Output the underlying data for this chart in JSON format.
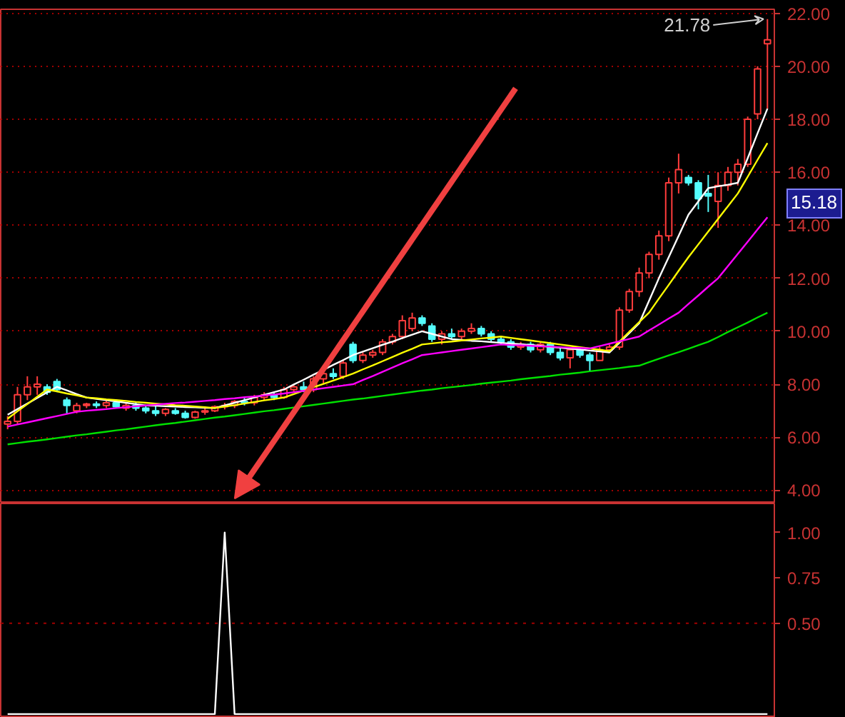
{
  "chart_data": [
    {
      "type": "candlestick",
      "categories": [
        null,
        null,
        null,
        null,
        null,
        null,
        null,
        null,
        null,
        null,
        null,
        null,
        null,
        null,
        null,
        null,
        null,
        null,
        null,
        null,
        null,
        null,
        null,
        null,
        null,
        null,
        null,
        null,
        null,
        null,
        null,
        null,
        null,
        null,
        null,
        null,
        null,
        null,
        null,
        null,
        null,
        null,
        null,
        null,
        null,
        null,
        null,
        null,
        null,
        null,
        null,
        null,
        null,
        null,
        null,
        null,
        null,
        null,
        null,
        null,
        null,
        null,
        null,
        null,
        null,
        null,
        null,
        null,
        null,
        null,
        null,
        null,
        null,
        null,
        null,
        null,
        null,
        null
      ],
      "ohlc": [
        [
          6.5,
          6.8,
          6.3,
          6.6
        ],
        [
          6.6,
          7.9,
          6.5,
          7.6
        ],
        [
          7.6,
          8.3,
          7.4,
          7.9
        ],
        [
          7.9,
          8.3,
          7.6,
          8.0
        ],
        [
          7.9,
          8.0,
          7.6,
          7.7
        ],
        [
          8.1,
          8.2,
          7.7,
          7.8
        ],
        [
          7.4,
          7.5,
          6.9,
          7.2
        ],
        [
          7.0,
          7.3,
          6.9,
          7.2
        ],
        [
          7.2,
          7.3,
          7.1,
          7.25
        ],
        [
          7.25,
          7.35,
          7.1,
          7.2
        ],
        [
          7.2,
          7.4,
          7.1,
          7.3
        ],
        [
          7.3,
          7.4,
          7.1,
          7.15
        ],
        [
          7.1,
          7.3,
          7.0,
          7.2
        ],
        [
          7.2,
          7.3,
          7.0,
          7.1
        ],
        [
          7.1,
          7.2,
          6.9,
          7.0
        ],
        [
          7.0,
          7.2,
          6.8,
          6.9
        ],
        [
          6.9,
          7.1,
          6.8,
          7.05
        ],
        [
          7.0,
          7.1,
          6.85,
          6.9
        ],
        [
          6.9,
          7.0,
          6.7,
          6.75
        ],
        [
          6.75,
          7.0,
          6.7,
          6.95
        ],
        [
          6.95,
          7.1,
          6.85,
          7.0
        ],
        [
          7.0,
          7.2,
          6.95,
          7.15
        ],
        [
          7.15,
          7.3,
          7.05,
          7.2
        ],
        [
          7.2,
          7.4,
          7.1,
          7.35
        ],
        [
          7.35,
          7.5,
          7.2,
          7.3
        ],
        [
          7.3,
          7.6,
          7.2,
          7.5
        ],
        [
          7.5,
          7.7,
          7.4,
          7.6
        ],
        [
          7.6,
          7.7,
          7.4,
          7.5
        ],
        [
          7.5,
          7.9,
          7.45,
          7.8
        ],
        [
          7.8,
          8.0,
          7.7,
          7.9
        ],
        [
          7.9,
          8.1,
          7.7,
          7.8
        ],
        [
          7.8,
          8.3,
          7.7,
          8.2
        ],
        [
          8.2,
          8.5,
          8.0,
          8.4
        ],
        [
          8.4,
          8.6,
          8.2,
          8.3
        ],
        [
          8.3,
          8.9,
          8.2,
          8.8
        ],
        [
          9.5,
          9.6,
          8.8,
          8.9
        ],
        [
          8.9,
          9.2,
          8.8,
          9.1
        ],
        [
          9.1,
          9.3,
          9.0,
          9.2
        ],
        [
          9.2,
          9.7,
          9.1,
          9.6
        ],
        [
          9.6,
          9.9,
          9.5,
          9.8
        ],
        [
          9.8,
          10.6,
          9.7,
          10.4
        ],
        [
          10.1,
          10.7,
          10.0,
          10.5
        ],
        [
          10.5,
          10.6,
          10.2,
          10.3
        ],
        [
          10.2,
          10.3,
          9.6,
          9.7
        ],
        [
          9.7,
          10.0,
          9.5,
          9.9
        ],
        [
          9.9,
          10.1,
          9.7,
          9.8
        ],
        [
          9.8,
          10.1,
          9.7,
          10.0
        ],
        [
          10.0,
          10.3,
          9.9,
          10.1
        ],
        [
          10.1,
          10.2,
          9.8,
          9.9
        ],
        [
          9.9,
          10.0,
          9.6,
          9.7
        ],
        [
          9.7,
          9.8,
          9.5,
          9.6
        ],
        [
          9.6,
          9.7,
          9.3,
          9.4
        ],
        [
          9.4,
          9.6,
          9.3,
          9.5
        ],
        [
          9.5,
          9.6,
          9.2,
          9.3
        ],
        [
          9.3,
          9.6,
          9.2,
          9.5
        ],
        [
          9.5,
          9.6,
          9.1,
          9.2
        ],
        [
          9.2,
          9.4,
          8.9,
          9.0
        ],
        [
          9.0,
          9.4,
          8.6,
          9.3
        ],
        [
          9.3,
          9.4,
          9.0,
          9.1
        ],
        [
          9.1,
          9.2,
          8.5,
          8.9
        ],
        [
          8.9,
          9.4,
          8.9,
          9.3
        ],
        [
          9.3,
          9.5,
          9.2,
          9.4
        ],
        [
          9.4,
          10.9,
          9.3,
          10.8
        ],
        [
          10.8,
          11.6,
          10.7,
          11.5
        ],
        [
          11.5,
          12.4,
          11.3,
          12.2
        ],
        [
          12.2,
          13.0,
          12.0,
          12.9
        ],
        [
          12.9,
          13.8,
          12.7,
          13.6
        ],
        [
          13.6,
          15.8,
          13.4,
          15.6
        ],
        [
          15.6,
          16.7,
          15.2,
          16.1
        ],
        [
          15.8,
          15.9,
          15.5,
          15.6
        ],
        [
          15.6,
          15.7,
          14.6,
          15.0
        ],
        [
          15.2,
          15.9,
          14.5,
          15.1
        ],
        [
          14.9,
          16.0,
          13.9,
          15.5
        ],
        [
          15.5,
          16.2,
          15.3,
          16.0
        ],
        [
          16.0,
          16.5,
          15.5,
          16.3
        ],
        [
          16.3,
          18.1,
          16.2,
          18.0
        ],
        [
          18.2,
          20.0,
          18.0,
          19.9
        ],
        [
          20.85,
          21.78,
          18.4,
          21.0
        ]
      ],
      "series": [
        {
          "type": "line",
          "color": "#ffffff",
          "values": [
            6.85,
            7.06,
            7.27,
            7.48,
            7.69,
            7.9,
            7.77,
            7.63,
            7.5,
            7.45,
            7.4,
            7.35,
            7.3,
            7.25,
            7.2,
            7.19,
            7.17,
            7.16,
            7.14,
            7.13,
            7.11,
            7.1,
            7.2,
            7.3,
            7.4,
            7.5,
            7.6,
            7.7,
            7.8,
            7.99,
            8.17,
            8.36,
            8.54,
            8.73,
            8.91,
            9.1,
            9.23,
            9.36,
            9.49,
            9.61,
            9.74,
            9.87,
            10.0,
            9.9,
            9.8,
            9.7,
            9.67,
            9.64,
            9.62,
            9.59,
            9.56,
            9.53,
            9.51,
            9.48,
            9.45,
            9.41,
            9.38,
            9.34,
            9.31,
            9.27,
            9.24,
            9.2,
            9.57,
            9.93,
            10.3,
            11.15,
            12.0,
            12.8,
            13.6,
            14.4,
            14.9,
            15.4,
            15.47,
            15.53,
            15.6,
            16.53,
            17.47,
            18.4
          ]
        },
        {
          "type": "line",
          "color": "#ffff00",
          "values": [
            6.7,
            6.98,
            7.25,
            7.53,
            7.8,
            7.73,
            7.65,
            7.58,
            7.5,
            7.47,
            7.43,
            7.4,
            7.37,
            7.33,
            7.3,
            7.27,
            7.24,
            7.21,
            7.19,
            7.16,
            7.13,
            7.1,
            7.16,
            7.21,
            7.27,
            7.33,
            7.39,
            7.44,
            7.5,
            7.63,
            7.76,
            7.89,
            8.01,
            8.14,
            8.27,
            8.4,
            8.56,
            8.71,
            8.87,
            9.03,
            9.19,
            9.34,
            9.5,
            9.54,
            9.58,
            9.61,
            9.65,
            9.69,
            9.73,
            9.76,
            9.8,
            9.75,
            9.7,
            9.65,
            9.6,
            9.55,
            9.5,
            9.45,
            9.4,
            9.35,
            9.3,
            9.25,
            9.61,
            9.98,
            10.34,
            10.7,
            11.23,
            11.75,
            12.28,
            12.8,
            13.28,
            13.76,
            14.24,
            14.72,
            15.2,
            15.83,
            16.47,
            17.1
          ]
        },
        {
          "type": "line",
          "color": "#ff00ff",
          "values": [
            6.4,
            6.48,
            6.56,
            6.64,
            6.72,
            6.8,
            6.88,
            6.96,
            7.0,
            7.03,
            7.06,
            7.1,
            7.13,
            7.17,
            7.2,
            7.23,
            7.26,
            7.29,
            7.31,
            7.34,
            7.37,
            7.4,
            7.44,
            7.47,
            7.51,
            7.54,
            7.58,
            7.61,
            7.65,
            7.7,
            7.75,
            7.8,
            7.85,
            7.9,
            7.95,
            8.0,
            8.16,
            8.31,
            8.47,
            8.63,
            8.79,
            8.94,
            9.1,
            9.15,
            9.2,
            9.25,
            9.3,
            9.35,
            9.4,
            9.45,
            9.5,
            9.48,
            9.47,
            9.45,
            9.43,
            9.42,
            9.4,
            9.38,
            9.37,
            9.35,
            9.44,
            9.53,
            9.62,
            9.71,
            9.8,
            10.03,
            10.25,
            10.48,
            10.7,
            11.03,
            11.35,
            11.68,
            12.0,
            12.46,
            12.92,
            13.38,
            13.84,
            14.3
          ]
        },
        {
          "type": "line",
          "color": "#00e000",
          "values": [
            5.73,
            5.78,
            5.83,
            5.87,
            5.92,
            5.97,
            6.02,
            6.07,
            6.11,
            6.16,
            6.21,
            6.26,
            6.3,
            6.35,
            6.4,
            6.45,
            6.5,
            6.54,
            6.59,
            6.64,
            6.69,
            6.74,
            6.78,
            6.83,
            6.88,
            6.93,
            6.98,
            7.02,
            7.07,
            7.12,
            7.17,
            7.22,
            7.27,
            7.32,
            7.37,
            7.42,
            7.46,
            7.51,
            7.56,
            7.61,
            7.66,
            7.71,
            7.76,
            7.8,
            7.85,
            7.89,
            7.93,
            7.97,
            8.02,
            8.06,
            8.1,
            8.14,
            8.19,
            8.23,
            8.27,
            8.31,
            8.36,
            8.4,
            8.44,
            8.49,
            8.53,
            8.57,
            8.61,
            8.66,
            8.7,
            8.83,
            8.96,
            9.09,
            9.21,
            9.34,
            9.47,
            9.6,
            9.78,
            9.97,
            10.15,
            10.33,
            10.52,
            10.7
          ]
        }
      ],
      "ylim": [
        3.5,
        22.15
      ],
      "yticks": [
        {
          "value": 4,
          "label": "4.00"
        },
        {
          "value": 6,
          "label": "6.00"
        },
        {
          "value": 8,
          "label": "8.00"
        },
        {
          "value": 10,
          "label": "10.00"
        },
        {
          "value": 12,
          "label": "12.00"
        },
        {
          "value": 14,
          "label": "14.00"
        },
        {
          "value": 16,
          "label": "16.00"
        },
        {
          "value": 18,
          "label": "18.00"
        },
        {
          "value": 20,
          "label": "20.00"
        },
        {
          "value": 22,
          "label": "22.00"
        }
      ],
      "grid": "y",
      "line_style": "solid",
      "annotations": [
        "21.78",
        "15.18"
      ]
    },
    {
      "type": "line",
      "categories": [
        null,
        null,
        null,
        null,
        null,
        null,
        null,
        null,
        null,
        null,
        null,
        null,
        null,
        null,
        null,
        null,
        null,
        null,
        null,
        null,
        null,
        null,
        null,
        null,
        null,
        null,
        null,
        null,
        null,
        null,
        null,
        null,
        null,
        null,
        null,
        null,
        null,
        null,
        null,
        null,
        null,
        null,
        null,
        null,
        null,
        null,
        null,
        null,
        null,
        null,
        null,
        null,
        null,
        null,
        null,
        null,
        null,
        null,
        null,
        null,
        null,
        null,
        null,
        null,
        null,
        null,
        null,
        null,
        null,
        null,
        null,
        null,
        null,
        null,
        null,
        null,
        null,
        null
      ],
      "series": [
        {
          "color": "#ffffff",
          "values": [
            0,
            0,
            0,
            0,
            0,
            0,
            0,
            0,
            0,
            0,
            0,
            0,
            0,
            0,
            0,
            0,
            0,
            0,
            0,
            0,
            0,
            0,
            1,
            0,
            0,
            0,
            0,
            0,
            0,
            0,
            0,
            0,
            0,
            0,
            0,
            0,
            0,
            0,
            0,
            0,
            0,
            0,
            0,
            0,
            0,
            0,
            0,
            0,
            0,
            0,
            0,
            0,
            0,
            0,
            0,
            0,
            0,
            0,
            0,
            0,
            0,
            0,
            0,
            0,
            0,
            0,
            0,
            0,
            0,
            0,
            0,
            0,
            0,
            0,
            0,
            0,
            0,
            0
          ]
        }
      ],
      "ylim": [
        -0.02,
        1.16
      ],
      "yticks": [
        {
          "value": 0.5,
          "label": "0.50"
        },
        {
          "value": 0.75,
          "label": "0.75"
        },
        {
          "value": 1,
          "label": "1.00"
        }
      ],
      "ref_lines": [
        {
          "axis": "y",
          "value": 0.5,
          "line_style": "dotted",
          "color": "#a00000"
        }
      ]
    }
  ]
}
